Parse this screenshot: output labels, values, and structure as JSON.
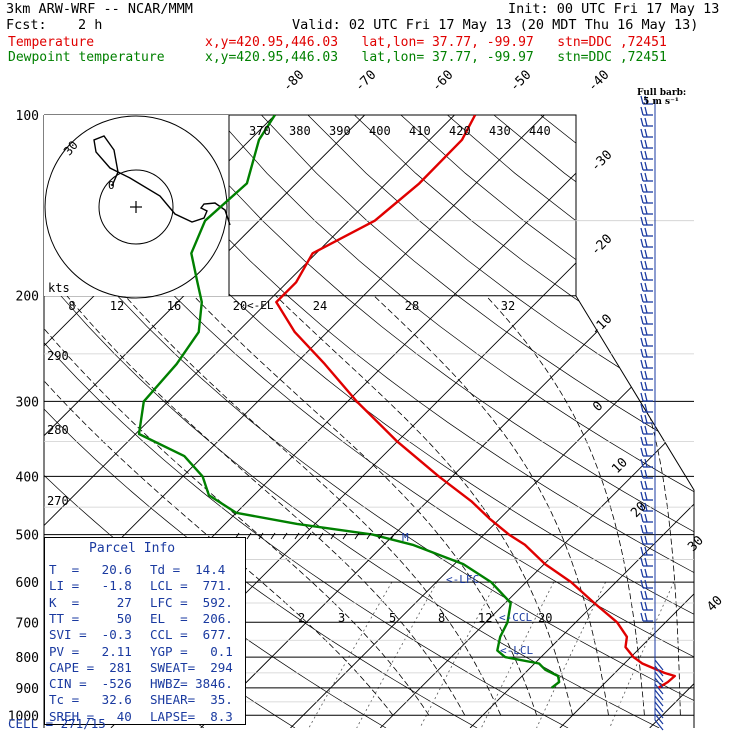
{
  "header": {
    "model": "3km ARW-WRF -- NCAR/MMM",
    "init": "Init: 00 UTC Fri 17 May 13",
    "fcst_label": "Fcst:",
    "fcst_value": "2 h",
    "valid": "Valid: 02 UTC Fri 17 May 13 (20 MDT Thu 16 May 13)",
    "temp_label": "Temperature",
    "temp_info": "x,y=420.95,446.03   lat,lon= 37.77, -99.97   stn=DDC ,72451",
    "dew_label": "Dewpoint temperature",
    "dew_info": "x,y=420.95,446.03   lat,lon= 37.77, -99.97   stn=DDC ,72451",
    "barb_note_1": "Full barb:",
    "barb_note_2": "5 m s⁻¹"
  },
  "colors": {
    "temperature": "#e00000",
    "dewpoint": "#008000",
    "parcel_text": "#1a3aa0",
    "barbs": "#1a3aa0"
  },
  "parcel_info": {
    "title": "Parcel Info",
    "rows": [
      {
        "l": "T  =   20.6",
        "r": "Td =  14.4"
      },
      {
        "l": "LI =   -1.8",
        "r": "LCL =  771."
      },
      {
        "l": "K  =     27",
        "r": "LFC =  592."
      },
      {
        "l": "TT =     50",
        "r": "EL  =  206."
      },
      {
        "l": "SVI =  -0.3",
        "r": "CCL =  677."
      },
      {
        "l": "PV =   2.11",
        "r": "YGP =   0.1"
      },
      {
        "l": "CAPE =  281",
        "r": "SWEAT=  294"
      },
      {
        "l": "CIN =  -526",
        "r": "HWBZ= 3846."
      },
      {
        "l": "Tc =   32.6",
        "r": "SHEAR=  35."
      },
      {
        "l": "SREH =   40",
        "r": "LAPSE=  8.3"
      }
    ],
    "cell": "CELL = 271/15"
  },
  "chart_data": {
    "type": "line",
    "chart_kind": "skew-T log-P sounding",
    "y_axis": "pressure (hPa), log scale, reversed",
    "pressure_levels": [
      "100",
      "200",
      "300",
      "400",
      "500",
      "600",
      "700",
      "800",
      "900",
      "1000"
    ],
    "isotherm_labels": [
      "-80",
      "-70",
      "-60",
      "-50",
      "-40",
      "-30",
      "-20",
      "-10",
      "0",
      "10",
      "20",
      "30",
      "40"
    ],
    "theta_labels": [
      "370",
      "380",
      "390",
      "400",
      "410",
      "420",
      "430",
      "440"
    ],
    "mixing_ratio_labels": [
      "2",
      "3",
      "5",
      "8",
      "12",
      "20"
    ],
    "height_labels": [
      "290",
      "280",
      "270"
    ],
    "hodograph_speed_labels": [
      "8",
      "12",
      "16",
      "20",
      "24",
      "28",
      "32"
    ],
    "hodograph_unit": "kts",
    "hodograph_ring_label": "30",
    "hodograph_origin_label": "0",
    "annotations": [
      "<-EL",
      "<-LFC",
      "<-CCL",
      "<-LCL",
      "M"
    ],
    "series": [
      {
        "name": "Temperature",
        "pressure": [
          900,
          880,
          860,
          850,
          820,
          800,
          770,
          740,
          700,
          650,
          600,
          560,
          520,
          500,
          470,
          440,
          400,
          350,
          300,
          260,
          230,
          205,
          190,
          170,
          150,
          130,
          110,
          100
        ],
        "temperature": [
          26.5,
          26.9,
          27.0,
          25.5,
          22.0,
          20.3,
          18.3,
          17.3,
          14.6,
          9.9,
          5.0,
          0.1,
          -4.3,
          -7.2,
          -11.2,
          -15.1,
          -21.5,
          -30.0,
          -39.0,
          -46.7,
          -53.6,
          -59.0,
          -59.0,
          -60.4,
          -57.1,
          -56.3,
          -56.4,
          -57.7
        ]
      },
      {
        "name": "Dewpoint temperature",
        "pressure": [
          900,
          880,
          860,
          840,
          820,
          800,
          780,
          760,
          740,
          700,
          650,
          600,
          560,
          520,
          500,
          480,
          460,
          430,
          400,
          370,
          340,
          300,
          260,
          230,
          205,
          190,
          170,
          150,
          130,
          110,
          100
        ],
        "dewpoint": [
          14.6,
          14.8,
          14.0,
          11.9,
          10.5,
          6.0,
          4.4,
          3.8,
          3.2,
          2.4,
          0.6,
          -3.9,
          -9.0,
          -16.8,
          -22.4,
          -32.0,
          -40.0,
          -45.0,
          -47.8,
          -52.1,
          -59.6,
          -62.7,
          -63.2,
          -64.3,
          -67.3,
          -70.0,
          -73.9,
          -76.0,
          -75.5,
          -79.0,
          -80.0
        ]
      }
    ]
  }
}
